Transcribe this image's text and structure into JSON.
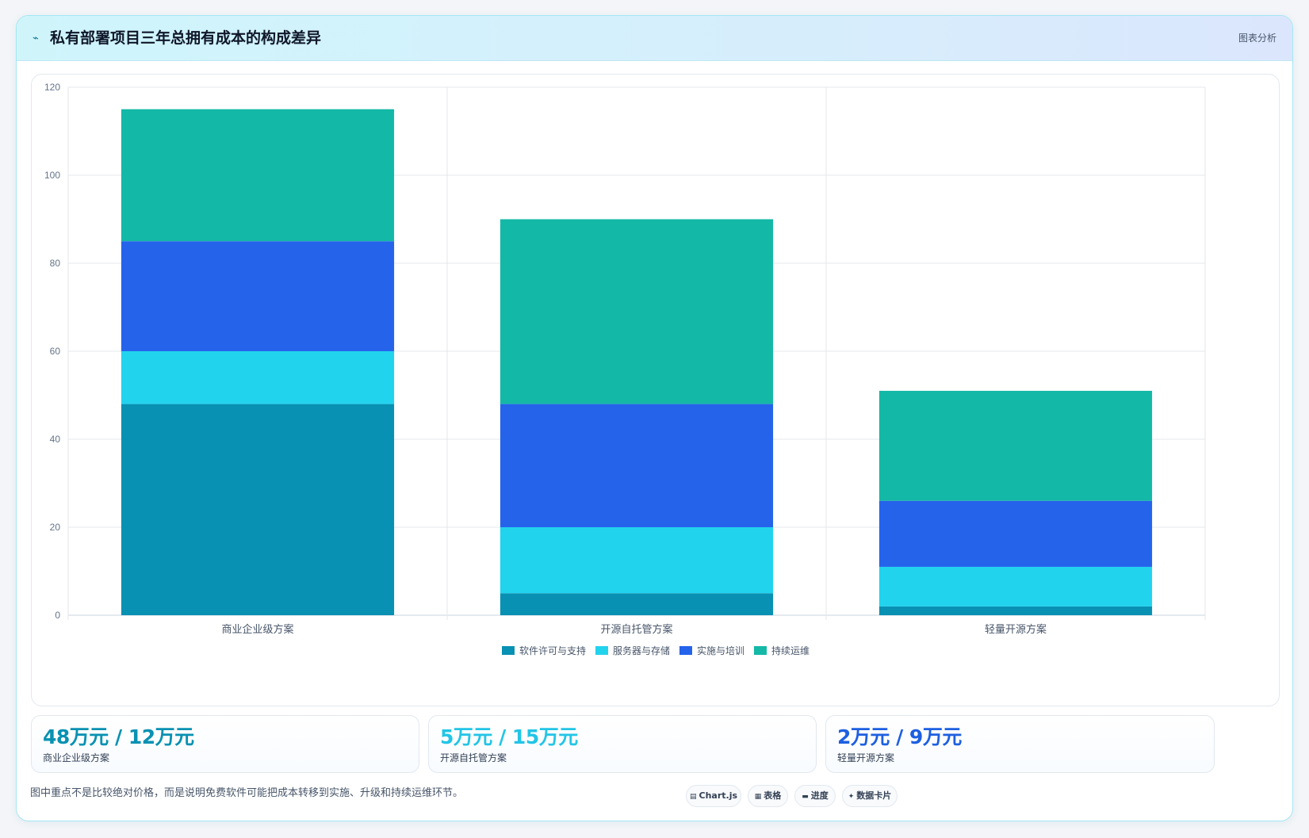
{
  "header": {
    "icon": "chart-line-icon",
    "title": "私有部署项目三年总拥有成本的构成差异",
    "tag": "图表分析"
  },
  "chart_data": {
    "type": "bar",
    "stacked": true,
    "categories": [
      "商业企业级方案",
      "开源自托管方案",
      "轻量开源方案"
    ],
    "series": [
      {
        "name": "软件许可与支持",
        "color": "#0891b2",
        "values": [
          48,
          5,
          2
        ]
      },
      {
        "name": "服务器与存储",
        "color": "#22d3ee",
        "values": [
          12,
          15,
          9
        ]
      },
      {
        "name": "实施与培训",
        "color": "#2563eb",
        "values": [
          25,
          28,
          15
        ]
      },
      {
        "name": "持续运维",
        "color": "#14b8a6",
        "values": [
          30,
          42,
          25
        ]
      }
    ],
    "ylim": [
      0,
      120
    ],
    "yticks": [
      "0",
      "20",
      "40",
      "60",
      "80",
      "100",
      "120"
    ],
    "grid": true,
    "legend": "bottom"
  },
  "stats": [
    {
      "value": "48万元 / 12万元",
      "label": "商业企业级方案",
      "color": "#0891b2"
    },
    {
      "value": "5万元 / 15万元",
      "label": "开源自托管方案",
      "color": "#22c5e6"
    },
    {
      "value": "2万元 / 9万元",
      "label": "轻量开源方案",
      "color": "#1d5fe0"
    }
  ],
  "footnote": "图中重点不是比较绝对价格，而是说明免费软件可能把成本转移到实施、升级和持续运维环节。",
  "pills": [
    {
      "icon": "chart-icon",
      "glyph": "▤",
      "label": "Chart.js"
    },
    {
      "icon": "table-icon",
      "glyph": "▦",
      "label": "表格"
    },
    {
      "icon": "progress-icon",
      "glyph": "▬",
      "label": "进度"
    },
    {
      "icon": "card-icon",
      "glyph": "✦",
      "label": "数据卡片"
    }
  ]
}
